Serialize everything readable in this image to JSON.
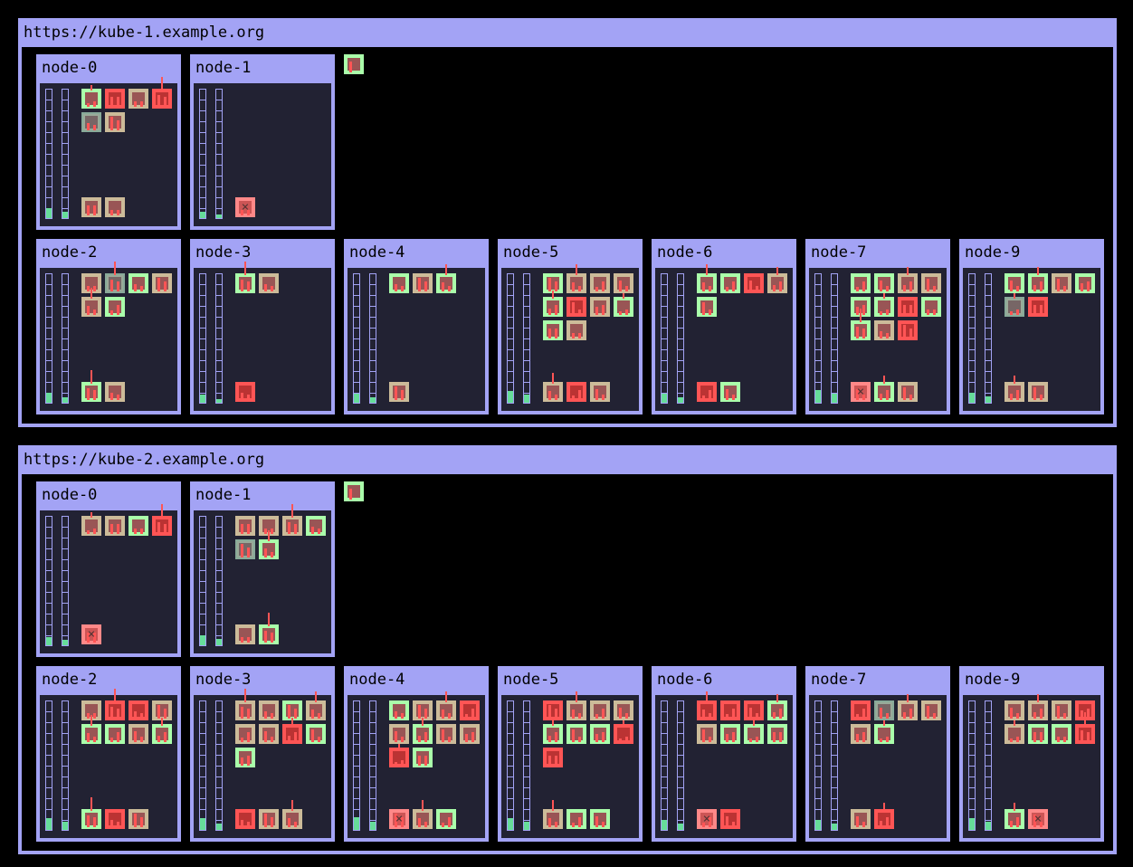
{
  "colors": {
    "frame": "#a3a3f5",
    "node_bg": "#222233",
    "running": "#aaffaa",
    "pending": "#ccbb99",
    "error": "#ff5555",
    "terminating": "#ff8888",
    "gauge_fill": "#66dd99"
  },
  "clusters": [
    {
      "title": "https://kube-1.example.org",
      "nodes": [
        {
          "name": "node-0",
          "cpu_usage": 0.08,
          "mem_usage": 0.05,
          "pods": [
            "running",
            "error",
            "pending",
            "error",
            "grey",
            "pending"
          ],
          "system_pods": [
            "pending",
            "pending"
          ]
        },
        {
          "name": "node-1",
          "cpu_usage": 0.05,
          "mem_usage": 0.03,
          "pods": [],
          "system_pods": [
            "terminating"
          ]
        },
        {
          "name": "node-2",
          "cpu_usage": 0.08,
          "mem_usage": 0.04,
          "pods": [
            "pending",
            "grey",
            "running",
            "pending",
            "pending",
            "running"
          ],
          "system_pods": [
            "running",
            "pending"
          ]
        },
        {
          "name": "node-3",
          "cpu_usage": 0.06,
          "mem_usage": 0.03,
          "pods": [
            "running",
            "pending"
          ],
          "system_pods": [
            "error"
          ]
        },
        {
          "name": "node-4",
          "cpu_usage": 0.07,
          "mem_usage": 0.04,
          "pods": [
            "running",
            "pending",
            "running"
          ],
          "system_pods": [
            "pending"
          ]
        },
        {
          "name": "node-5",
          "cpu_usage": 0.09,
          "mem_usage": 0.06,
          "pods": [
            "running",
            "pending",
            "pending",
            "pending",
            "running",
            "error",
            "pending",
            "running",
            "running",
            "pending"
          ],
          "system_pods": [
            "pending",
            "error",
            "pending"
          ]
        },
        {
          "name": "node-6",
          "cpu_usage": 0.07,
          "mem_usage": 0.04,
          "pods": [
            "running",
            "running",
            "error",
            "pending",
            "running"
          ],
          "system_pods": [
            "error",
            "running"
          ]
        },
        {
          "name": "node-7",
          "cpu_usage": 0.1,
          "mem_usage": 0.07,
          "pods": [
            "running",
            "running",
            "pending",
            "pending",
            "running",
            "running",
            "error",
            "running",
            "running",
            "pending",
            "error"
          ],
          "system_pods": [
            "terminating",
            "running",
            "pending"
          ]
        },
        {
          "name": "node-9",
          "cpu_usage": 0.08,
          "mem_usage": 0.05,
          "pods": [
            "running",
            "running",
            "pending",
            "running",
            "grey",
            "error"
          ],
          "system_pods": [
            "pending",
            "pending"
          ]
        }
      ],
      "unassigned": [
        "running"
      ]
    },
    {
      "title": "https://kube-2.example.org",
      "nodes": [
        {
          "name": "node-0",
          "cpu_usage": 0.06,
          "mem_usage": 0.04,
          "pods": [
            "pending",
            "pending",
            "running",
            "error"
          ],
          "system_pods": [
            "terminating"
          ]
        },
        {
          "name": "node-1",
          "cpu_usage": 0.08,
          "mem_usage": 0.05,
          "pods": [
            "pending",
            "pending",
            "pending",
            "running",
            "grey",
            "running"
          ],
          "system_pods": [
            "pending",
            "running"
          ]
        },
        {
          "name": "node-2",
          "cpu_usage": 0.09,
          "mem_usage": 0.06,
          "pods": [
            "pending",
            "error",
            "error",
            "pending",
            "running",
            "running",
            "pending",
            "running"
          ],
          "system_pods": [
            "running",
            "error",
            "pending"
          ]
        },
        {
          "name": "node-3",
          "cpu_usage": 0.09,
          "mem_usage": 0.05,
          "pods": [
            "pending",
            "pending",
            "running",
            "pending",
            "pending",
            "pending",
            "error",
            "running",
            "running"
          ],
          "system_pods": [
            "error",
            "pending",
            "pending"
          ]
        },
        {
          "name": "node-4",
          "cpu_usage": 0.1,
          "mem_usage": 0.06,
          "pods": [
            "running",
            "pending",
            "pending",
            "error",
            "pending",
            "running",
            "pending",
            "pending",
            "error",
            "running"
          ],
          "system_pods": [
            "terminating",
            "pending",
            "running"
          ]
        },
        {
          "name": "node-5",
          "cpu_usage": 0.09,
          "mem_usage": 0.06,
          "pods": [
            "error",
            "pending",
            "pending",
            "pending",
            "running",
            "running",
            "running",
            "error",
            "error"
          ],
          "system_pods": [
            "pending",
            "running",
            "running"
          ]
        },
        {
          "name": "node-6",
          "cpu_usage": 0.08,
          "mem_usage": 0.05,
          "pods": [
            "error",
            "error",
            "error",
            "running",
            "pending",
            "running",
            "running",
            "running"
          ],
          "system_pods": [
            "terminating",
            "error"
          ]
        },
        {
          "name": "node-7",
          "cpu_usage": 0.08,
          "mem_usage": 0.05,
          "pods": [
            "error",
            "grey",
            "pending",
            "pending",
            "pending",
            "running"
          ],
          "system_pods": [
            "pending",
            "error"
          ]
        },
        {
          "name": "node-9",
          "cpu_usage": 0.09,
          "mem_usage": 0.06,
          "pods": [
            "pending",
            "pending",
            "pending",
            "error",
            "pending",
            "running",
            "running",
            "error"
          ],
          "system_pods": [
            "running",
            "terminating"
          ]
        }
      ],
      "unassigned": [
        "running"
      ]
    }
  ]
}
